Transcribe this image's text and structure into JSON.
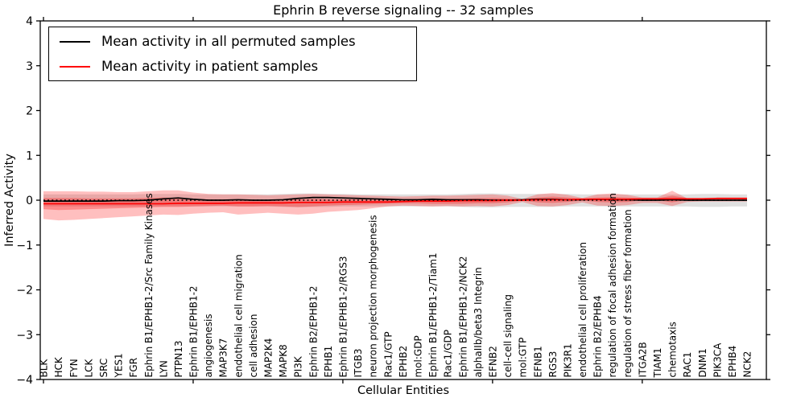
{
  "figure": {
    "title": "Ephrin B reverse signaling -- 32 samples",
    "xlabel": "Cellular Entities",
    "ylabel": "Inferred Activity"
  },
  "legend": {
    "items": [
      {
        "label": "Mean activity in all permuted samples",
        "color": "#000000"
      },
      {
        "label": "Mean activity in patient samples",
        "color": "#ff0000"
      }
    ]
  },
  "chart_data": {
    "type": "line",
    "title": "Ephrin B reverse signaling -- 32 samples",
    "xlabel": "Cellular Entities",
    "ylabel": "Inferred Activity",
    "ylim": [
      -4,
      4
    ],
    "yticks": [
      -4,
      -3,
      -2,
      -1,
      0,
      1,
      2,
      3,
      4
    ],
    "x_major_tick_positions": [
      0,
      10,
      20,
      30,
      40
    ],
    "grid": false,
    "legend_position": "upper left",
    "zero_line": {
      "value": 0,
      "style": "dotted",
      "color": "#000000"
    },
    "categories": [
      "BLK",
      "HCK",
      "FYN",
      "LCK",
      "SRC",
      "YES1",
      "FGR",
      "Ephrin B1/EPHB1-2/Src Family Kinases",
      "LYN",
      "PTPN13",
      "Ephrin B1/EPHB1-2",
      "angiogenesis",
      "MAP3K7",
      "endothelial cell migration",
      "cell adhesion",
      "MAP2K4",
      "MAPK8",
      "PI3K",
      "Ephrin B2/EPHB1-2",
      "EPHB1",
      "Ephrin B1/EPHB1-2/RGS3",
      "ITGB3",
      "neuron projection morphogenesis",
      "Rac1/GTP",
      "EPHB2",
      "mol:GDP",
      "Ephrin B1/EPHB1-2/Tiam1",
      "Rac1/GDP",
      "Ephrin B1/EPHB1-2/NCK2",
      "alphaIIb/beta3 Integrin",
      "EFNB2",
      "cell-cell signaling",
      "mol:GTP",
      "EFNB1",
      "RGS3",
      "PIK3R1",
      "endothelial cell proliferation",
      "Ephrin B2/EPHB4",
      "regulation of focal adhesion formation",
      "regulation of stress fiber formation",
      "ITGA2B",
      "TIAM1",
      "chemotaxis",
      "RAC1",
      "DNM1",
      "PIK3CA",
      "EPHB4",
      "NCK2"
    ],
    "series": [
      {
        "name": "Mean activity in all permuted samples",
        "type": "line",
        "color": "#000000",
        "values": [
          -0.02,
          -0.02,
          -0.02,
          -0.02,
          -0.02,
          -0.01,
          -0.01,
          0.0,
          0.03,
          0.05,
          0.02,
          0.0,
          0.0,
          0.01,
          0.0,
          0.0,
          0.01,
          0.04,
          0.06,
          0.06,
          0.05,
          0.04,
          0.03,
          0.02,
          0.01,
          0.01,
          0.02,
          0.01,
          0.01,
          0.01,
          0.0,
          0.0,
          0.01,
          0.02,
          0.02,
          0.01,
          0.01,
          0.02,
          0.01,
          0.01,
          0.0,
          0.0,
          0.01,
          0.0,
          0.0,
          0.0,
          0.0,
          0.0
        ]
      },
      {
        "name": "Mean activity in patient samples",
        "type": "line",
        "color": "#ff0000",
        "values": [
          -0.08,
          -0.08,
          -0.08,
          -0.08,
          -0.08,
          -0.08,
          -0.08,
          -0.08,
          -0.08,
          -0.07,
          -0.07,
          -0.07,
          -0.07,
          -0.06,
          -0.06,
          -0.06,
          -0.06,
          -0.05,
          -0.05,
          -0.05,
          -0.04,
          -0.04,
          -0.04,
          -0.04,
          -0.03,
          -0.02,
          -0.02,
          -0.02,
          -0.01,
          -0.01,
          -0.01,
          0.0,
          0.0,
          0.01,
          0.01,
          0.01,
          0.02,
          0.02,
          0.02,
          0.02,
          0.03,
          0.03,
          0.03,
          0.03,
          0.03,
          0.04,
          0.04,
          0.04
        ]
      }
    ],
    "bands": [
      {
        "name": "permuted samples band",
        "color": "#000000",
        "opacity": 0.12,
        "upper": [
          0.13,
          0.13,
          0.13,
          0.13,
          0.13,
          0.13,
          0.13,
          0.14,
          0.14,
          0.14,
          0.13,
          0.13,
          0.13,
          0.13,
          0.13,
          0.13,
          0.14,
          0.15,
          0.15,
          0.14,
          0.14,
          0.13,
          0.13,
          0.13,
          0.13,
          0.13,
          0.13,
          0.13,
          0.14,
          0.15,
          0.15,
          0.14,
          0.14,
          0.14,
          0.14,
          0.14,
          0.13,
          0.13,
          0.13,
          0.13,
          0.13,
          0.13,
          0.13,
          0.13,
          0.14,
          0.14,
          0.13,
          0.13
        ],
        "lower": [
          -0.14,
          -0.14,
          -0.14,
          -0.14,
          -0.14,
          -0.14,
          -0.14,
          -0.14,
          -0.14,
          -0.14,
          -0.14,
          -0.14,
          -0.14,
          -0.14,
          -0.14,
          -0.14,
          -0.15,
          -0.16,
          -0.15,
          -0.15,
          -0.14,
          -0.14,
          -0.14,
          -0.14,
          -0.14,
          -0.14,
          -0.14,
          -0.14,
          -0.15,
          -0.16,
          -0.16,
          -0.15,
          -0.15,
          -0.15,
          -0.15,
          -0.14,
          -0.14,
          -0.14,
          -0.14,
          -0.14,
          -0.14,
          -0.14,
          -0.14,
          -0.14,
          -0.15,
          -0.15,
          -0.14,
          -0.14
        ]
      },
      {
        "name": "patient samples outer band",
        "color": "#ff0000",
        "opacity": 0.25,
        "upper": [
          0.2,
          0.2,
          0.2,
          0.19,
          0.19,
          0.18,
          0.18,
          0.2,
          0.22,
          0.22,
          0.17,
          0.14,
          0.13,
          0.13,
          0.12,
          0.11,
          0.12,
          0.13,
          0.14,
          0.13,
          0.12,
          0.11,
          0.1,
          0.09,
          0.08,
          0.09,
          0.1,
          0.1,
          0.11,
          0.12,
          0.13,
          0.1,
          0.03,
          0.13,
          0.16,
          0.12,
          0.05,
          0.13,
          0.15,
          0.12,
          0.06,
          0.06,
          0.21,
          0.04,
          0.03,
          0.03,
          0.03,
          0.03
        ],
        "lower": [
          -0.42,
          -0.45,
          -0.44,
          -0.42,
          -0.4,
          -0.38,
          -0.36,
          -0.34,
          -0.32,
          -0.33,
          -0.3,
          -0.28,
          -0.27,
          -0.32,
          -0.3,
          -0.28,
          -0.3,
          -0.32,
          -0.3,
          -0.26,
          -0.24,
          -0.22,
          -0.18,
          -0.14,
          -0.12,
          -0.13,
          -0.14,
          -0.13,
          -0.14,
          -0.13,
          -0.14,
          -0.11,
          -0.04,
          -0.13,
          -0.14,
          -0.11,
          -0.05,
          -0.12,
          -0.13,
          -0.11,
          -0.06,
          -0.06,
          -0.13,
          -0.04,
          -0.03,
          -0.03,
          -0.03,
          -0.03
        ]
      },
      {
        "name": "patient samples inner band",
        "color": "#ff0000",
        "opacity": 0.28,
        "upper": [
          0.05,
          0.05,
          0.05,
          0.04,
          0.04,
          0.04,
          0.04,
          0.05,
          0.06,
          0.05,
          0.03,
          0.02,
          0.02,
          0.02,
          0.01,
          0.01,
          0.02,
          0.02,
          0.03,
          0.02,
          0.02,
          0.02,
          0.01,
          0.01,
          0.01,
          0.02,
          0.03,
          0.03,
          0.03,
          0.04,
          0.05,
          0.04,
          0.02,
          0.06,
          0.08,
          0.06,
          0.04,
          0.06,
          0.07,
          0.06,
          0.04,
          0.04,
          0.1,
          0.05,
          0.05,
          0.05,
          0.05,
          0.05
        ],
        "lower": [
          -0.2,
          -0.22,
          -0.21,
          -0.2,
          -0.19,
          -0.18,
          -0.17,
          -0.16,
          -0.15,
          -0.15,
          -0.14,
          -0.13,
          -0.12,
          -0.14,
          -0.14,
          -0.13,
          -0.14,
          -0.15,
          -0.14,
          -0.12,
          -0.11,
          -0.1,
          -0.09,
          -0.08,
          -0.07,
          -0.07,
          -0.08,
          -0.08,
          -0.08,
          -0.07,
          -0.07,
          -0.05,
          -0.01,
          -0.05,
          -0.06,
          -0.04,
          -0.01,
          -0.04,
          -0.05,
          -0.04,
          0.0,
          0.0,
          -0.05,
          0.01,
          0.01,
          0.01,
          0.01,
          0.01
        ]
      }
    ]
  }
}
